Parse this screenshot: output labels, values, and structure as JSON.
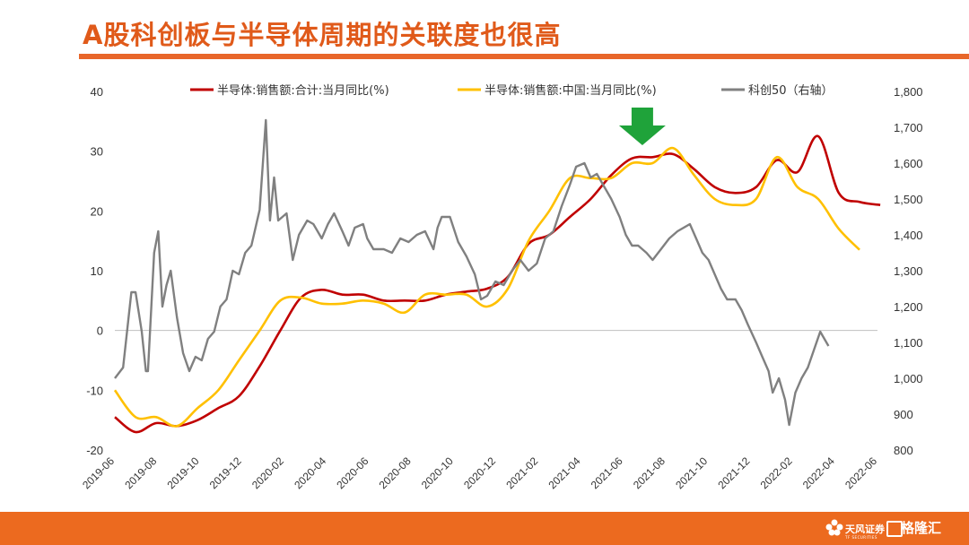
{
  "page": {
    "title": "A股科创板与半导体周期的关联度也很高"
  },
  "footer": {
    "brand1_name": "天风证券",
    "brand1_sub": "TF SECURITIES",
    "brand2_name": "格隆汇"
  },
  "colors": {
    "accent": "#E05A1A",
    "footer": "#EC6A1F",
    "series_red": "#C00000",
    "series_yellow": "#FFC000",
    "series_gray": "#808080",
    "arrow": "#1FA33A"
  },
  "chart_data": {
    "type": "line",
    "y_left": {
      "lim": [
        -20,
        40
      ],
      "ticks": [
        "-20",
        "-10",
        "0",
        "10",
        "20",
        "30",
        "40"
      ]
    },
    "y_right": {
      "lim": [
        800,
        1800
      ],
      "ticks": [
        "800",
        "900",
        "1,000",
        "1,100",
        "1,200",
        "1,300",
        "1,400",
        "1,500",
        "1,600",
        "1,700",
        "1,800"
      ]
    },
    "x_ticks": [
      "2019-06",
      "2019-08",
      "2019-10",
      "2019-12",
      "2020-02",
      "2020-04",
      "2020-06",
      "2020-08",
      "2020-10",
      "2020-12",
      "2021-02",
      "2021-04",
      "2021-06",
      "2021-08",
      "2021-10",
      "2021-12",
      "2022-02",
      "2022-04",
      "2022-06"
    ],
    "series": [
      {
        "name": "半导体:销售额:合计:当月同比(%)",
        "axis": "left",
        "color": "#C00000",
        "points": [
          [
            0,
            -14.5
          ],
          [
            1,
            -17
          ],
          [
            2,
            -15.5
          ],
          [
            3,
            -16
          ],
          [
            4,
            -15
          ],
          [
            5,
            -13
          ],
          [
            6,
            -11
          ],
          [
            7,
            -6
          ],
          [
            8,
            0
          ],
          [
            9,
            5.5
          ],
          [
            10,
            6.8
          ],
          [
            11,
            6
          ],
          [
            12,
            6
          ],
          [
            13,
            5
          ],
          [
            14,
            5
          ],
          [
            15,
            5
          ],
          [
            16,
            6
          ],
          [
            17,
            6.5
          ],
          [
            18,
            7
          ],
          [
            19,
            9
          ],
          [
            20,
            14.5
          ],
          [
            21,
            16
          ],
          [
            22,
            19
          ],
          [
            23,
            22
          ],
          [
            24,
            26
          ],
          [
            25,
            28.8
          ],
          [
            26,
            29
          ],
          [
            27,
            29.5
          ],
          [
            28,
            27
          ],
          [
            29,
            24
          ],
          [
            30,
            23
          ],
          [
            31,
            24
          ],
          [
            32,
            28.5
          ],
          [
            33,
            26.5
          ],
          [
            34,
            32.5
          ],
          [
            35,
            23
          ],
          [
            36,
            21.5
          ],
          [
            37,
            21
          ]
        ]
      },
      {
        "name": "半导体:销售额:中国:当月同比(%)",
        "axis": "left",
        "color": "#FFC000",
        "points": [
          [
            0,
            -10
          ],
          [
            1,
            -14.5
          ],
          [
            2,
            -14.5
          ],
          [
            3,
            -16
          ],
          [
            4,
            -13
          ],
          [
            5,
            -10
          ],
          [
            6,
            -5
          ],
          [
            7,
            0
          ],
          [
            8,
            5
          ],
          [
            9,
            5.5
          ],
          [
            10,
            4.5
          ],
          [
            11,
            4.5
          ],
          [
            12,
            5
          ],
          [
            13,
            4.5
          ],
          [
            14,
            3
          ],
          [
            15,
            6
          ],
          [
            16,
            6
          ],
          [
            17,
            6
          ],
          [
            18,
            4
          ],
          [
            19,
            7
          ],
          [
            20,
            15
          ],
          [
            21,
            20
          ],
          [
            22,
            25.5
          ],
          [
            23,
            25.5
          ],
          [
            24,
            25.5
          ],
          [
            25,
            28
          ],
          [
            26,
            28
          ],
          [
            27,
            30.5
          ],
          [
            28,
            26
          ],
          [
            29,
            22
          ],
          [
            30,
            21
          ],
          [
            31,
            22
          ],
          [
            32,
            29
          ],
          [
            33,
            24
          ],
          [
            34,
            22
          ],
          [
            35,
            17
          ],
          [
            36,
            13.5
          ]
        ]
      },
      {
        "name": "科创50（右轴）",
        "axis": "right",
        "color": "#808080",
        "points": [
          [
            0,
            1000
          ],
          [
            0.4,
            1030
          ],
          [
            0.8,
            1240
          ],
          [
            1.0,
            1240
          ],
          [
            1.3,
            1130
          ],
          [
            1.5,
            1020
          ],
          [
            1.6,
            1020
          ],
          [
            1.9,
            1350
          ],
          [
            2.1,
            1410
          ],
          [
            2.3,
            1200
          ],
          [
            2.5,
            1260
          ],
          [
            2.7,
            1300
          ],
          [
            3.0,
            1170
          ],
          [
            3.3,
            1070
          ],
          [
            3.6,
            1020
          ],
          [
            3.9,
            1060
          ],
          [
            4.2,
            1050
          ],
          [
            4.5,
            1110
          ],
          [
            4.8,
            1130
          ],
          [
            5.1,
            1200
          ],
          [
            5.4,
            1220
          ],
          [
            5.7,
            1300
          ],
          [
            6.0,
            1290
          ],
          [
            6.3,
            1350
          ],
          [
            6.6,
            1370
          ],
          [
            7.0,
            1470
          ],
          [
            7.3,
            1720
          ],
          [
            7.5,
            1440
          ],
          [
            7.7,
            1560
          ],
          [
            7.9,
            1440
          ],
          [
            8.3,
            1460
          ],
          [
            8.6,
            1330
          ],
          [
            8.9,
            1400
          ],
          [
            9.3,
            1440
          ],
          [
            9.6,
            1430
          ],
          [
            10.0,
            1390
          ],
          [
            10.3,
            1430
          ],
          [
            10.6,
            1460
          ],
          [
            11.0,
            1410
          ],
          [
            11.3,
            1370
          ],
          [
            11.6,
            1420
          ],
          [
            12.0,
            1430
          ],
          [
            12.2,
            1390
          ],
          [
            12.5,
            1360
          ],
          [
            13.0,
            1360
          ],
          [
            13.4,
            1350
          ],
          [
            13.8,
            1390
          ],
          [
            14.2,
            1380
          ],
          [
            14.6,
            1400
          ],
          [
            15.0,
            1410
          ],
          [
            15.4,
            1360
          ],
          [
            15.6,
            1420
          ],
          [
            15.8,
            1450
          ],
          [
            16.2,
            1450
          ],
          [
            16.6,
            1380
          ],
          [
            17.0,
            1340
          ],
          [
            17.4,
            1290
          ],
          [
            17.7,
            1220
          ],
          [
            18.0,
            1230
          ],
          [
            18.4,
            1270
          ],
          [
            18.8,
            1260
          ],
          [
            19.2,
            1300
          ],
          [
            19.6,
            1330
          ],
          [
            20.0,
            1300
          ],
          [
            20.4,
            1320
          ],
          [
            20.8,
            1390
          ],
          [
            21.2,
            1410
          ],
          [
            21.6,
            1480
          ],
          [
            22.0,
            1540
          ],
          [
            22.3,
            1590
          ],
          [
            22.7,
            1600
          ],
          [
            23.0,
            1560
          ],
          [
            23.3,
            1570
          ],
          [
            23.7,
            1530
          ],
          [
            24.0,
            1500
          ],
          [
            24.4,
            1450
          ],
          [
            24.7,
            1400
          ],
          [
            25.0,
            1370
          ],
          [
            25.3,
            1370
          ],
          [
            25.7,
            1350
          ],
          [
            26.0,
            1330
          ],
          [
            26.4,
            1360
          ],
          [
            26.8,
            1390
          ],
          [
            27.2,
            1410
          ],
          [
            27.5,
            1420
          ],
          [
            27.8,
            1430
          ],
          [
            28.1,
            1390
          ],
          [
            28.4,
            1350
          ],
          [
            28.7,
            1330
          ],
          [
            29.0,
            1290
          ],
          [
            29.3,
            1250
          ],
          [
            29.6,
            1220
          ],
          [
            30.0,
            1220
          ],
          [
            30.3,
            1190
          ],
          [
            30.6,
            1150
          ],
          [
            31.0,
            1100
          ],
          [
            31.3,
            1060
          ],
          [
            31.6,
            1020
          ],
          [
            31.8,
            960
          ],
          [
            32.1,
            1000
          ],
          [
            32.4,
            940
          ],
          [
            32.6,
            870
          ],
          [
            32.9,
            960
          ],
          [
            33.2,
            1000
          ],
          [
            33.5,
            1030
          ],
          [
            33.8,
            1080
          ],
          [
            34.1,
            1130
          ],
          [
            34.3,
            1110
          ],
          [
            34.5,
            1090
          ]
        ]
      }
    ],
    "x_range": [
      0,
      36
    ],
    "annotations": [
      {
        "type": "down-arrow",
        "color": "#1FA33A",
        "x": 25.5
      }
    ],
    "legend_placement": "top",
    "grid": false
  }
}
